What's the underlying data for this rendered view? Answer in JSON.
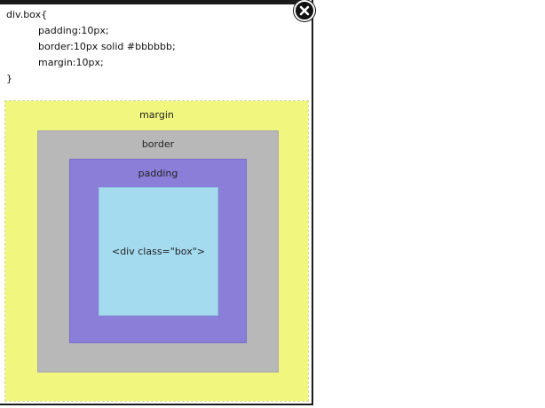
{
  "code": {
    "selector_open": "div.box{",
    "lines": [
      "padding:10px;",
      "border:10px solid #bbbbbb;",
      "margin:10px;"
    ],
    "close_brace": "}"
  },
  "diagram": {
    "margin_label": "margin",
    "border_label": "border",
    "padding_label": "padding",
    "content_label": "<div class=\"box\">",
    "colors": {
      "margin": "#f1f67e",
      "border": "#b8b8b8",
      "padding": "#8a7ed9",
      "content": "#a4dbef"
    }
  },
  "close": {
    "icon": "close-icon"
  }
}
